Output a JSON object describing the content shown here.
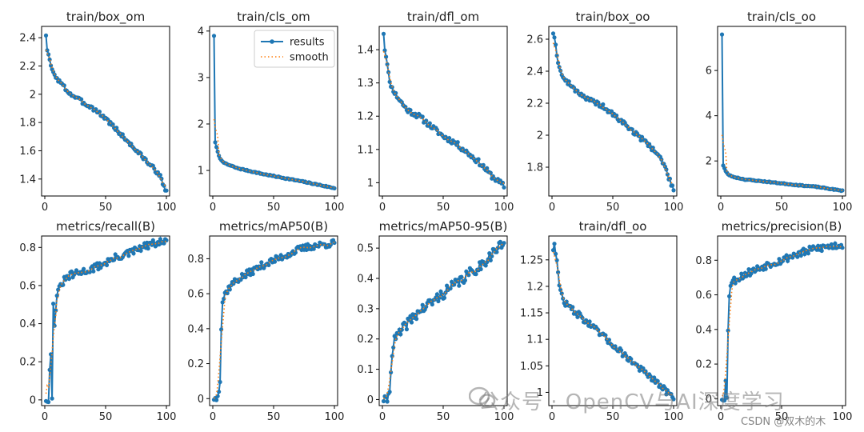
{
  "chart_data": [
    {
      "type": "line",
      "title": "train/box_om",
      "xlim": [
        0,
        100
      ],
      "ylim": [
        1.28,
        2.48
      ],
      "xticks": [
        0,
        50,
        100
      ],
      "yticks": [
        1.4,
        1.6,
        1.8,
        2.0,
        2.2,
        2.4
      ],
      "anchors": [
        [
          1,
          2.42
        ],
        [
          2,
          2.31
        ],
        [
          4,
          2.24
        ],
        [
          6,
          2.17
        ],
        [
          10,
          2.11
        ],
        [
          20,
          2.01
        ],
        [
          30,
          1.95
        ],
        [
          40,
          1.9
        ],
        [
          50,
          1.83
        ],
        [
          60,
          1.74
        ],
        [
          70,
          1.65
        ],
        [
          80,
          1.56
        ],
        [
          90,
          1.47
        ],
        [
          95,
          1.43
        ],
        [
          97,
          1.35
        ],
        [
          100,
          1.32
        ]
      ],
      "noise": 0.015,
      "seed": 3,
      "legend": false
    },
    {
      "type": "line",
      "title": "train/cls_om",
      "xlim": [
        0,
        100
      ],
      "ylim": [
        0.45,
        4.1
      ],
      "xticks": [
        0,
        50,
        100
      ],
      "yticks": [
        1,
        2,
        3,
        4
      ],
      "anchors": [
        [
          1,
          3.9
        ],
        [
          2,
          1.6
        ],
        [
          4,
          1.4
        ],
        [
          6,
          1.25
        ],
        [
          10,
          1.15
        ],
        [
          20,
          1.05
        ],
        [
          40,
          0.93
        ],
        [
          60,
          0.83
        ],
        [
          80,
          0.73
        ],
        [
          100,
          0.62
        ]
      ],
      "noise": 0.012,
      "seed": 7,
      "legend": true
    },
    {
      "type": "line",
      "title": "train/dfl_om",
      "xlim": [
        0,
        100
      ],
      "ylim": [
        0.96,
        1.47
      ],
      "xticks": [
        0,
        50,
        100
      ],
      "yticks": [
        1.0,
        1.1,
        1.2,
        1.3,
        1.4
      ],
      "anchors": [
        [
          1,
          1.45
        ],
        [
          2,
          1.4
        ],
        [
          4,
          1.36
        ],
        [
          6,
          1.3
        ],
        [
          10,
          1.27
        ],
        [
          20,
          1.22
        ],
        [
          30,
          1.2
        ],
        [
          40,
          1.17
        ],
        [
          50,
          1.14
        ],
        [
          60,
          1.12
        ],
        [
          70,
          1.09
        ],
        [
          80,
          1.06
        ],
        [
          90,
          1.02
        ],
        [
          100,
          0.99
        ]
      ],
      "noise": 0.008,
      "seed": 11,
      "legend": false
    },
    {
      "type": "line",
      "title": "train/box_oo",
      "xlim": [
        0,
        100
      ],
      "ylim": [
        1.62,
        2.68
      ],
      "xticks": [
        0,
        50,
        100
      ],
      "yticks": [
        1.8,
        2.0,
        2.2,
        2.4,
        2.6
      ],
      "anchors": [
        [
          1,
          2.64
        ],
        [
          2,
          2.62
        ],
        [
          4,
          2.5
        ],
        [
          6,
          2.42
        ],
        [
          10,
          2.35
        ],
        [
          20,
          2.28
        ],
        [
          30,
          2.22
        ],
        [
          40,
          2.19
        ],
        [
          50,
          2.13
        ],
        [
          60,
          2.07
        ],
        [
          70,
          2.0
        ],
        [
          80,
          1.94
        ],
        [
          90,
          1.85
        ],
        [
          95,
          1.76
        ],
        [
          98,
          1.69
        ],
        [
          100,
          1.67
        ]
      ],
      "noise": 0.015,
      "seed": 19,
      "legend": false
    },
    {
      "type": "line",
      "title": "train/cls_oo",
      "xlim": [
        0,
        100
      ],
      "ylim": [
        0.45,
        7.95
      ],
      "xticks": [
        0,
        50,
        100
      ],
      "yticks": [
        2,
        4,
        6
      ],
      "anchors": [
        [
          1,
          7.6
        ],
        [
          2,
          1.8
        ],
        [
          4,
          1.55
        ],
        [
          6,
          1.4
        ],
        [
          10,
          1.3
        ],
        [
          20,
          1.18
        ],
        [
          40,
          1.07
        ],
        [
          60,
          0.95
        ],
        [
          80,
          0.85
        ],
        [
          100,
          0.68
        ]
      ],
      "noise": 0.02,
      "seed": 23,
      "legend": false
    },
    {
      "type": "line",
      "title": "metrics/recall(B)",
      "xlim": [
        0,
        100
      ],
      "ylim": [
        -0.03,
        0.86
      ],
      "xticks": [
        0,
        50,
        100
      ],
      "yticks": [
        0.0,
        0.2,
        0.4,
        0.6,
        0.8
      ],
      "anchors": [
        [
          1,
          0.0
        ],
        [
          3,
          0.0
        ],
        [
          4,
          0.15
        ],
        [
          5,
          0.25
        ],
        [
          6,
          0.0
        ],
        [
          7,
          0.5
        ],
        [
          8,
          0.4
        ],
        [
          10,
          0.55
        ],
        [
          15,
          0.62
        ],
        [
          20,
          0.65
        ],
        [
          30,
          0.67
        ],
        [
          40,
          0.69
        ],
        [
          50,
          0.72
        ],
        [
          60,
          0.75
        ],
        [
          70,
          0.77
        ],
        [
          80,
          0.8
        ],
        [
          90,
          0.82
        ],
        [
          100,
          0.83
        ]
      ],
      "noise": 0.02,
      "seed": 31,
      "legend": false
    },
    {
      "type": "line",
      "title": "metrics/mAP50(B)",
      "xlim": [
        0,
        100
      ],
      "ylim": [
        -0.04,
        0.93
      ],
      "xticks": [
        0,
        50,
        100
      ],
      "yticks": [
        0.0,
        0.2,
        0.4,
        0.6,
        0.8
      ],
      "anchors": [
        [
          1,
          0.0
        ],
        [
          3,
          0.0
        ],
        [
          5,
          0.05
        ],
        [
          6,
          0.1
        ],
        [
          7,
          0.4
        ],
        [
          8,
          0.55
        ],
        [
          10,
          0.6
        ],
        [
          15,
          0.65
        ],
        [
          20,
          0.68
        ],
        [
          30,
          0.72
        ],
        [
          40,
          0.76
        ],
        [
          50,
          0.79
        ],
        [
          60,
          0.82
        ],
        [
          70,
          0.85
        ],
        [
          80,
          0.87
        ],
        [
          90,
          0.88
        ],
        [
          100,
          0.89
        ]
      ],
      "noise": 0.02,
      "seed": 37,
      "legend": false
    },
    {
      "type": "line",
      "title": "metrics/mAP50-95(B)",
      "xlim": [
        0,
        100
      ],
      "ylim": [
        -0.02,
        0.54
      ],
      "xticks": [
        0,
        50,
        100
      ],
      "yticks": [
        0.0,
        0.1,
        0.2,
        0.3,
        0.4,
        0.5
      ],
      "anchors": [
        [
          1,
          0.0
        ],
        [
          4,
          0.0
        ],
        [
          6,
          0.03
        ],
        [
          7,
          0.1
        ],
        [
          8,
          0.15
        ],
        [
          10,
          0.2
        ],
        [
          15,
          0.22
        ],
        [
          20,
          0.25
        ],
        [
          30,
          0.29
        ],
        [
          40,
          0.32
        ],
        [
          50,
          0.35
        ],
        [
          60,
          0.38
        ],
        [
          70,
          0.41
        ],
        [
          80,
          0.44
        ],
        [
          90,
          0.48
        ],
        [
          100,
          0.52
        ]
      ],
      "noise": 0.018,
      "seed": 41,
      "legend": false
    },
    {
      "type": "line",
      "title": "train/dfl_oo",
      "xlim": [
        0,
        100
      ],
      "ylim": [
        0.975,
        1.295
      ],
      "xticks": [
        0,
        50,
        100
      ],
      "yticks": [
        1.0,
        1.05,
        1.1,
        1.15,
        1.2,
        1.25
      ],
      "anchors": [
        [
          1,
          1.27
        ],
        [
          2,
          1.28
        ],
        [
          4,
          1.25
        ],
        [
          6,
          1.2
        ],
        [
          10,
          1.17
        ],
        [
          20,
          1.15
        ],
        [
          30,
          1.13
        ],
        [
          40,
          1.11
        ],
        [
          50,
          1.09
        ],
        [
          60,
          1.07
        ],
        [
          70,
          1.05
        ],
        [
          80,
          1.03
        ],
        [
          90,
          1.01
        ],
        [
          95,
          1.0
        ],
        [
          100,
          0.99
        ]
      ],
      "noise": 0.006,
      "seed": 47,
      "legend": false
    },
    {
      "type": "line",
      "title": "metrics/precision(B)",
      "xlim": [
        0,
        100
      ],
      "ylim": [
        -0.04,
        0.94
      ],
      "xticks": [
        0,
        50,
        100
      ],
      "yticks": [
        0.0,
        0.2,
        0.4,
        0.6,
        0.8
      ],
      "anchors": [
        [
          1,
          0.0
        ],
        [
          3,
          0.0
        ],
        [
          4,
          0.1
        ],
        [
          5,
          0.0
        ],
        [
          6,
          0.4
        ],
        [
          7,
          0.6
        ],
        [
          8,
          0.66
        ],
        [
          10,
          0.68
        ],
        [
          15,
          0.7
        ],
        [
          20,
          0.72
        ],
        [
          30,
          0.75
        ],
        [
          40,
          0.78
        ],
        [
          50,
          0.8
        ],
        [
          60,
          0.83
        ],
        [
          70,
          0.85
        ],
        [
          80,
          0.87
        ],
        [
          90,
          0.88
        ],
        [
          100,
          0.89
        ]
      ],
      "noise": 0.022,
      "seed": 53,
      "legend": false
    }
  ],
  "legend": {
    "results": "results",
    "smooth": "smooth"
  },
  "colors": {
    "results": "#1f77b4",
    "smooth": "#ff7f0e",
    "axis": "#000000",
    "text": "#222222"
  },
  "watermark": {
    "main": "公众号 · OpenCV与AI深度学习",
    "corner": "CSDN @双木的木"
  }
}
